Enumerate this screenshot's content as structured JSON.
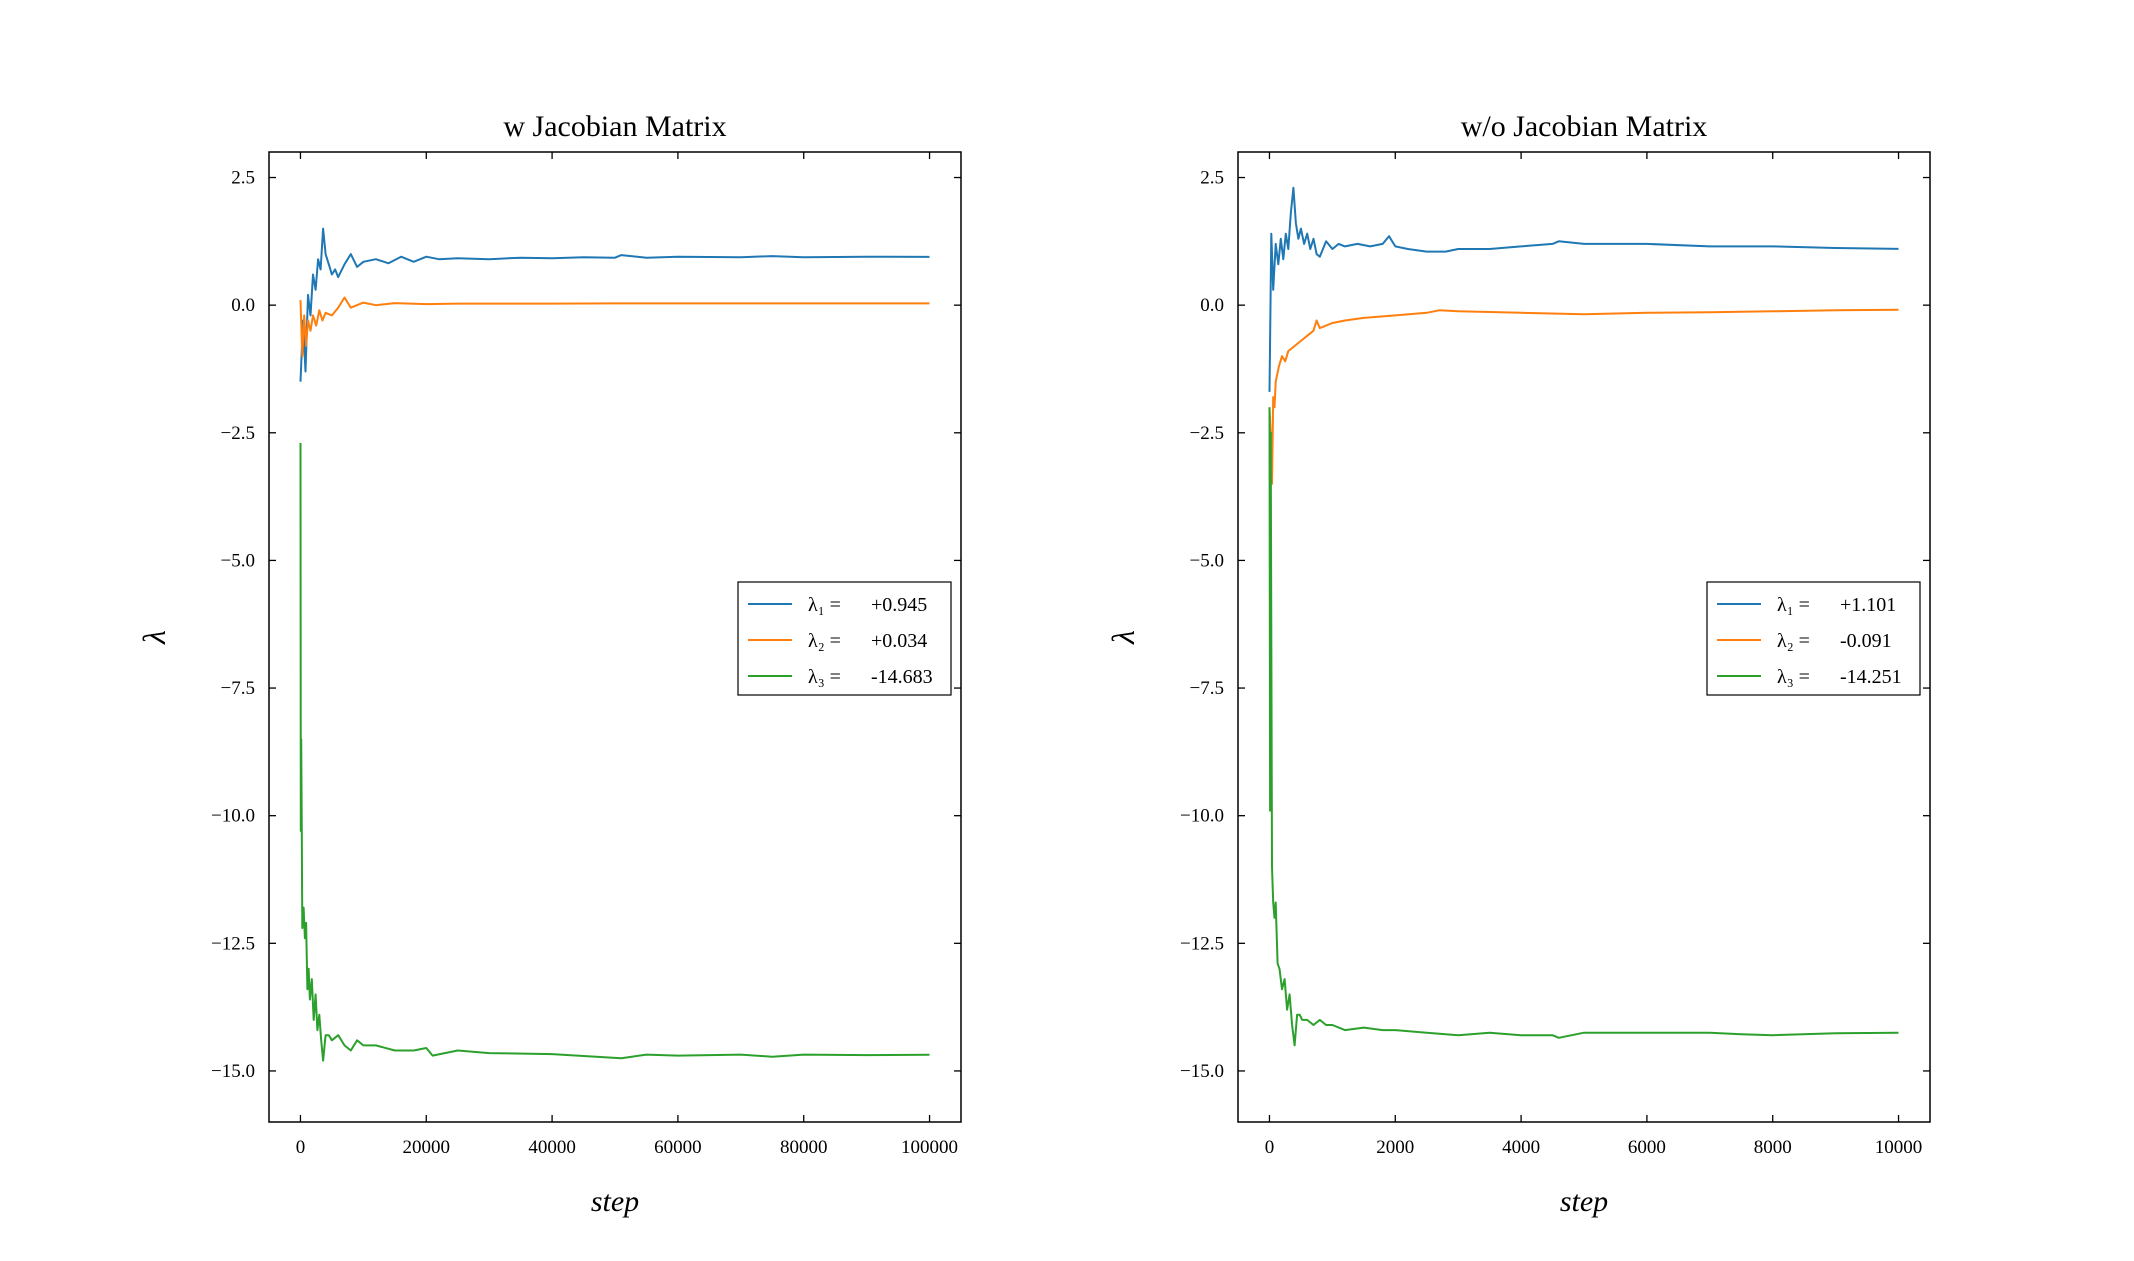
{
  "chart_data": [
    {
      "type": "line",
      "title": "w Jacobian Matrix",
      "xlabel": "step",
      "ylabel": "λ",
      "xlim": [
        -5000,
        105000
      ],
      "ylim": [
        -16,
        3
      ],
      "xticks": [
        0,
        20000,
        40000,
        60000,
        80000,
        100000
      ],
      "xtick_labels": [
        "0",
        "20000",
        "40000",
        "60000",
        "80000",
        "100000"
      ],
      "yticks": [
        2.5,
        0.0,
        -2.5,
        -5.0,
        -7.5,
        -10.0,
        -12.5,
        -15.0
      ],
      "ytick_labels": [
        "2.5",
        "0.0",
        "−2.5",
        "−5.0",
        "−7.5",
        "−10.0",
        "−12.5",
        "−15.0"
      ],
      "legend_position": "center-right",
      "series": [
        {
          "name": "λ1",
          "legend_label": "λ₁ =",
          "legend_value": "+0.945",
          "color": "#1f77b4",
          "x": [
            0,
            400,
            800,
            1200,
            1600,
            2000,
            2400,
            2800,
            3200,
            3600,
            4000,
            4500,
            5000,
            5500,
            6000,
            7000,
            8000,
            9000,
            10000,
            12000,
            14000,
            16000,
            18000,
            20000,
            22000,
            25000,
            30000,
            35000,
            40000,
            45000,
            50000,
            51000,
            55000,
            60000,
            70000,
            75000,
            80000,
            90000,
            100000
          ],
          "y": [
            -1.5,
            -0.3,
            -1.3,
            0.2,
            -0.2,
            0.6,
            0.3,
            0.9,
            0.7,
            1.5,
            1.0,
            0.8,
            0.6,
            0.7,
            0.55,
            0.8,
            1.0,
            0.75,
            0.85,
            0.9,
            0.82,
            0.95,
            0.85,
            0.95,
            0.9,
            0.92,
            0.9,
            0.93,
            0.92,
            0.94,
            0.93,
            0.98,
            0.93,
            0.95,
            0.94,
            0.96,
            0.94,
            0.95,
            0.945
          ]
        },
        {
          "name": "λ2",
          "legend_label": "λ₂ =",
          "legend_value": "+0.034",
          "color": "#ff7f0e",
          "x": [
            0,
            300,
            600,
            900,
            1200,
            1600,
            2000,
            2500,
            3000,
            3500,
            4000,
            5000,
            6000,
            7000,
            8000,
            10000,
            12000,
            15000,
            20000,
            25000,
            30000,
            40000,
            50000,
            60000,
            70000,
            80000,
            90000,
            100000
          ],
          "y": [
            0.1,
            -1.0,
            -0.2,
            -0.8,
            -0.3,
            -0.5,
            -0.2,
            -0.4,
            -0.1,
            -0.3,
            -0.15,
            -0.2,
            -0.05,
            0.15,
            -0.05,
            0.05,
            0.0,
            0.04,
            0.02,
            0.03,
            0.03,
            0.03,
            0.035,
            0.034,
            0.034,
            0.034,
            0.034,
            0.034
          ]
        },
        {
          "name": "λ3",
          "legend_label": "λ₃ =",
          "legend_value": "-14.683",
          "color": "#2ca02c",
          "x": [
            0,
            50,
            120,
            200,
            300,
            500,
            700,
            900,
            1100,
            1300,
            1500,
            1800,
            2100,
            2400,
            2700,
            3000,
            3300,
            3600,
            4000,
            4500,
            5000,
            6000,
            7000,
            8000,
            9000,
            10000,
            12000,
            15000,
            18000,
            20000,
            21000,
            25000,
            30000,
            40000,
            51000,
            55000,
            60000,
            70000,
            75000,
            80000,
            90000,
            100000
          ],
          "y": [
            -2.7,
            -10.3,
            -8.5,
            -10.0,
            -12.2,
            -11.8,
            -12.4,
            -12.1,
            -13.4,
            -13.0,
            -13.6,
            -13.2,
            -14.0,
            -13.5,
            -14.2,
            -13.9,
            -14.4,
            -14.8,
            -14.3,
            -14.3,
            -14.4,
            -14.3,
            -14.5,
            -14.6,
            -14.4,
            -14.5,
            -14.5,
            -14.6,
            -14.6,
            -14.55,
            -14.7,
            -14.6,
            -14.65,
            -14.67,
            -14.75,
            -14.68,
            -14.7,
            -14.68,
            -14.72,
            -14.68,
            -14.69,
            -14.683
          ]
        }
      ]
    },
    {
      "type": "line",
      "title": "w/o Jacobian Matrix",
      "xlabel": "step",
      "ylabel": "λ",
      "xlim": [
        -500,
        10500
      ],
      "ylim": [
        -16,
        3
      ],
      "xticks": [
        0,
        2000,
        4000,
        6000,
        8000,
        10000
      ],
      "xtick_labels": [
        "0",
        "2000",
        "4000",
        "6000",
        "8000",
        "10000"
      ],
      "yticks": [
        2.5,
        0.0,
        -2.5,
        -5.0,
        -7.5,
        -10.0,
        -12.5,
        -15.0
      ],
      "ytick_labels": [
        "2.5",
        "0.0",
        "−2.5",
        "−5.0",
        "−7.5",
        "−10.0",
        "−12.5",
        "−15.0"
      ],
      "legend_position": "center-right",
      "series": [
        {
          "name": "λ1",
          "legend_label": "λ₁ =",
          "legend_value": "+1.101",
          "color": "#1f77b4",
          "x": [
            0,
            30,
            60,
            100,
            140,
            180,
            220,
            260,
            300,
            340,
            380,
            420,
            460,
            500,
            550,
            600,
            650,
            700,
            750,
            800,
            900,
            1000,
            1100,
            1200,
            1400,
            1600,
            1800,
            1900,
            2000,
            2200,
            2500,
            2800,
            3000,
            3500,
            4000,
            4500,
            4600,
            5000,
            5500,
            6000,
            7000,
            8000,
            9000,
            10000
          ],
          "y": [
            -1.7,
            1.4,
            0.3,
            1.2,
            0.8,
            1.3,
            0.9,
            1.4,
            1.1,
            1.8,
            2.3,
            1.6,
            1.3,
            1.5,
            1.2,
            1.4,
            1.1,
            1.3,
            1.0,
            0.95,
            1.25,
            1.1,
            1.2,
            1.15,
            1.2,
            1.15,
            1.2,
            1.35,
            1.15,
            1.1,
            1.05,
            1.05,
            1.1,
            1.1,
            1.15,
            1.2,
            1.25,
            1.2,
            1.2,
            1.2,
            1.15,
            1.15,
            1.12,
            1.101
          ]
        },
        {
          "name": "λ2",
          "legend_label": "λ₂ =",
          "legend_value": "-0.091",
          "color": "#ff7f0e",
          "x": [
            0,
            20,
            40,
            60,
            80,
            100,
            150,
            200,
            250,
            300,
            400,
            500,
            600,
            700,
            750,
            800,
            900,
            1000,
            1200,
            1500,
            2000,
            2500,
            2700,
            3000,
            4000,
            5000,
            6000,
            7000,
            8000,
            9000,
            10000
          ],
          "y": [
            -2.0,
            -2.5,
            -3.5,
            -1.8,
            -2.0,
            -1.5,
            -1.2,
            -1.0,
            -1.1,
            -0.9,
            -0.8,
            -0.7,
            -0.6,
            -0.5,
            -0.3,
            -0.45,
            -0.4,
            -0.35,
            -0.3,
            -0.25,
            -0.2,
            -0.15,
            -0.1,
            -0.12,
            -0.15,
            -0.18,
            -0.15,
            -0.14,
            -0.12,
            -0.1,
            -0.091
          ]
        },
        {
          "name": "λ3",
          "legend_label": "λ₃ =",
          "legend_value": "-14.251",
          "color": "#2ca02c",
          "x": [
            0,
            10,
            20,
            40,
            60,
            80,
            100,
            130,
            160,
            200,
            240,
            280,
            320,
            360,
            400,
            440,
            480,
            520,
            600,
            700,
            800,
            900,
            1000,
            1200,
            1500,
            1800,
            2000,
            2500,
            3000,
            3500,
            4000,
            4500,
            4600,
            5000,
            6000,
            7000,
            7500,
            8000,
            9000,
            10000
          ],
          "y": [
            -2.0,
            -9.9,
            -2.5,
            -11.0,
            -11.7,
            -12.0,
            -11.7,
            -12.9,
            -13.0,
            -13.4,
            -13.2,
            -13.8,
            -13.5,
            -14.1,
            -14.5,
            -13.9,
            -13.9,
            -14.0,
            -14.0,
            -14.1,
            -14.0,
            -14.1,
            -14.1,
            -14.2,
            -14.15,
            -14.2,
            -14.2,
            -14.25,
            -14.3,
            -14.25,
            -14.3,
            -14.3,
            -14.35,
            -14.25,
            -14.25,
            -14.25,
            -14.28,
            -14.3,
            -14.26,
            -14.251
          ]
        }
      ]
    }
  ]
}
